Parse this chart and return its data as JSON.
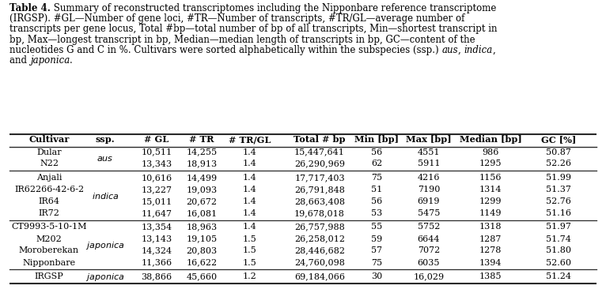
{
  "caption_bold": "Table 4.",
  "caption_rest": " Summary of reconstructed transcriptomes including the Nipponbare reference transcriptome (IRGSP). #GL—Number of gene loci, #TR—Number of transcripts, #TR/GL—average number of transcripts per gene locus, Total #bp—total number of bp of all transcripts, Min—shortest transcript in bp, Max—longest transcript in bp, Median—median length of transcripts in bp, GC—content of the nucleotides G and C in %. Cultivars were sorted alphabetically within the subspecies (ssp.) ",
  "caption_aus": "aus",
  "caption_comma1": ", ",
  "caption_indica": "indica",
  "caption_and": ", and ",
  "caption_japonica": "japonica",
  "caption_dot": ".",
  "headers": [
    "Cultivar",
    "ssp.",
    "# GL",
    "# TR",
    "# TR/GL",
    "Total # bp",
    "Min [bp]",
    "Max [bp]",
    "Median [bp]",
    "GC [%]"
  ],
  "rows": [
    [
      "Dular",
      "aus",
      "10,511",
      "14,255",
      "1.4",
      "15,447,641",
      "56",
      "4551",
      "986",
      "50.87"
    ],
    [
      "N22",
      "aus",
      "13,343",
      "18,913",
      "1.4",
      "26,290,969",
      "62",
      "5911",
      "1295",
      "52.26"
    ],
    [
      "Anjali",
      "indica",
      "10,616",
      "14,499",
      "1.4",
      "17,717,403",
      "75",
      "4216",
      "1156",
      "51.99"
    ],
    [
      "IR62266-42-6-2",
      "indica",
      "13,227",
      "19,093",
      "1.4",
      "26,791,848",
      "51",
      "7190",
      "1314",
      "51.37"
    ],
    [
      "IR64",
      "indica",
      "15,011",
      "20,672",
      "1.4",
      "28,663,408",
      "56",
      "6919",
      "1299",
      "52.76"
    ],
    [
      "IR72",
      "indica",
      "11,647",
      "16,081",
      "1.4",
      "19,678,018",
      "53",
      "5475",
      "1149",
      "51.16"
    ],
    [
      "CT9993-5-10-1M",
      "japonica",
      "13,354",
      "18,963",
      "1.4",
      "26,757,988",
      "55",
      "5752",
      "1318",
      "51.97"
    ],
    [
      "M202",
      "japonica",
      "13,143",
      "19,105",
      "1.5",
      "26,258,012",
      "59",
      "6644",
      "1287",
      "51.74"
    ],
    [
      "Moroberekan",
      "japonica",
      "14,324",
      "20,803",
      "1.5",
      "28,446,682",
      "57",
      "7072",
      "1278",
      "51.80"
    ],
    [
      "Nipponbare",
      "japonica",
      "11,366",
      "16,622",
      "1.5",
      "24,760,098",
      "75",
      "6035",
      "1394",
      "52.60"
    ],
    [
      "IRGSP",
      "japonica",
      "38,866",
      "45,660",
      "1.2",
      "69,184,066",
      "30",
      "16,029",
      "1385",
      "51.24"
    ]
  ],
  "groups": [
    [
      0,
      1
    ],
    [
      2,
      3,
      4,
      5
    ],
    [
      6,
      7,
      8,
      9
    ],
    [
      10
    ]
  ],
  "ssp_display": {
    "0": "aus",
    "1": "aus",
    "2": "indica",
    "3": "indica",
    "4": "indica",
    "5": "indica",
    "6": "japonica",
    "7": "japonica",
    "8": "japonica",
    "9": "japonica",
    "10": "japonica"
  },
  "bg_color": "#ffffff",
  "text_color": "#000000",
  "line_color": "#2a2a2a"
}
